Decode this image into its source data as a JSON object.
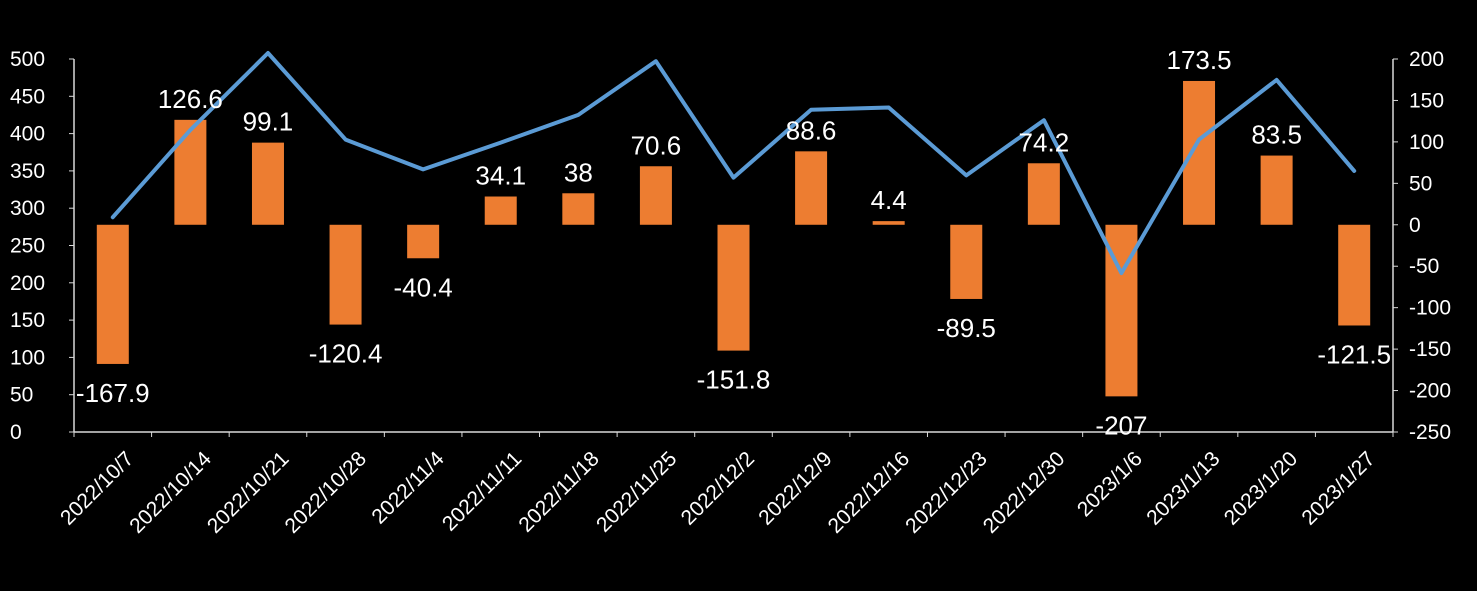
{
  "chart_data": {
    "type": "bar+line",
    "categories": [
      "2022/10/7",
      "2022/10/14",
      "2022/10/21",
      "2022/10/28",
      "2022/11/4",
      "2022/11/11",
      "2022/11/18",
      "2022/11/25",
      "2022/12/2",
      "2022/12/9",
      "2022/12/16",
      "2022/12/23",
      "2022/12/30",
      "2023/1/6",
      "2023/1/13",
      "2023/1/20",
      "2023/1/27"
    ],
    "series": [
      {
        "name": "bar",
        "type": "bar",
        "axis": "right",
        "color": "#ED7D31",
        "values": [
          -167.9,
          126.6,
          99.1,
          -120.4,
          -40.4,
          34.1,
          38,
          70.6,
          -151.8,
          88.6,
          4.4,
          -89.5,
          74.2,
          -207,
          173.5,
          83.5,
          -121.5
        ],
        "labels": [
          "-167.9",
          "126.6",
          "99.1",
          "-120.4",
          "-40.4",
          "34.1",
          "38",
          "70.6",
          "-151.8",
          "88.6",
          "4.4",
          "-89.5",
          "74.2",
          "-207",
          "173.5",
          "83.5",
          "-121.5"
        ]
      },
      {
        "name": "line",
        "type": "line",
        "axis": "left",
        "color": "#5B9BD5",
        "values": [
          288,
          405,
          508,
          392,
          352,
          388,
          425,
          497,
          341,
          432,
          435,
          344,
          418,
          213,
          392,
          472,
          350
        ]
      }
    ],
    "left_axis": {
      "min": 0,
      "max": 500,
      "step": 50,
      "ticks": [
        "0",
        "50",
        "100",
        "150",
        "200",
        "250",
        "300",
        "350",
        "400",
        "450",
        "500"
      ]
    },
    "right_axis": {
      "min": -250,
      "max": 200,
      "step": 50,
      "ticks": [
        "-250",
        "-200",
        "-150",
        "-100",
        "-50",
        "0",
        "50",
        "100",
        "150",
        "200"
      ]
    },
    "title": "",
    "xlabel": "",
    "ylabel": "",
    "grid": false,
    "legend": "none"
  }
}
